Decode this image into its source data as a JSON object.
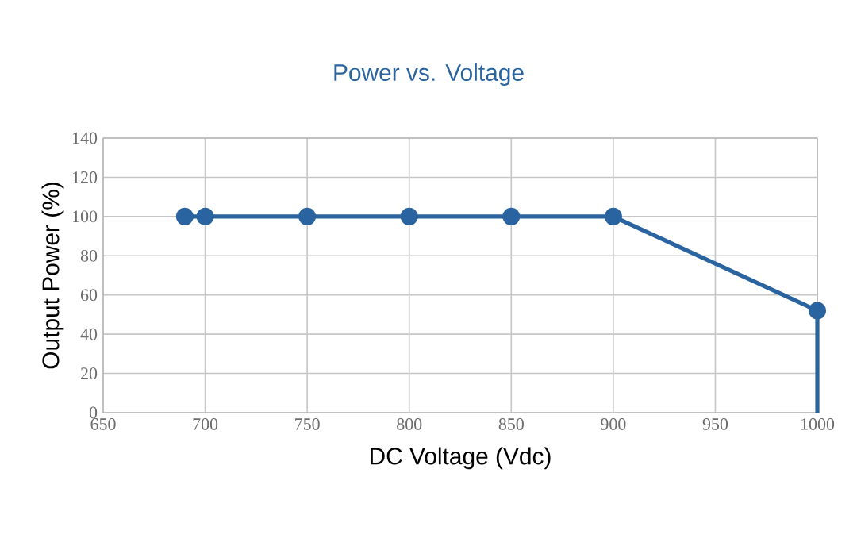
{
  "chart_data": {
    "type": "line",
    "title": "Power vs. Voltage",
    "xlabel": "DC Voltage (Vdc)",
    "ylabel": "Output Power (%)",
    "series": [
      {
        "color": "#2a64a0",
        "marker": "circle",
        "x": [
          690,
          700,
          750,
          800,
          850,
          900,
          1000
        ],
        "values": [
          100,
          100,
          100,
          100,
          100,
          100,
          52
        ]
      },
      {
        "color": "#2a64a0",
        "marker": "none",
        "x": [
          1000,
          1000
        ],
        "values": [
          52,
          0
        ]
      }
    ],
    "xlim": [
      650,
      1000
    ],
    "ylim": [
      0,
      140
    ],
    "xticks": [
      650,
      700,
      750,
      800,
      850,
      900,
      950,
      1000
    ],
    "yticks": [
      0,
      20,
      40,
      60,
      80,
      100,
      120,
      140
    ],
    "grid": true,
    "line_style": "solid"
  }
}
